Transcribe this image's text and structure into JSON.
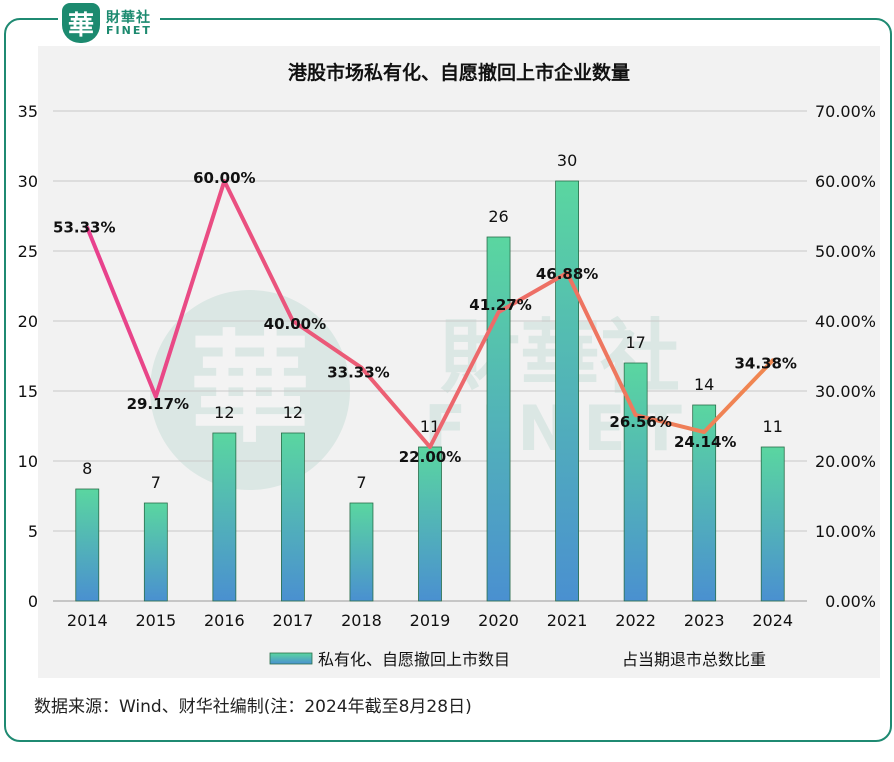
{
  "logo": {
    "badge": "華",
    "cn": "財華社",
    "en": "FINET"
  },
  "watermark": {
    "badge": "華",
    "cn": "財華社",
    "en": "FINET"
  },
  "title": "港股市场私有化、自愿撤回上市企业数量",
  "source": "数据来源：Wind、财华社编制(注：2024年截至8月28日)",
  "colors": {
    "frame": "#1f8a72",
    "bar_top": "#5ad6a0",
    "bar_bottom": "#4a90d0",
    "bar_stroke": "#2a6e4a",
    "line_start": "#e8408e",
    "line_end": "#f08850"
  },
  "chart_data": {
    "type": "bar+line",
    "title": "港股市场私有化、自愿撤回上市企业数量",
    "categories": [
      "2014",
      "2015",
      "2016",
      "2017",
      "2018",
      "2019",
      "2020",
      "2021",
      "2022",
      "2023",
      "2024"
    ],
    "series": [
      {
        "name": "私有化、自愿撤回上市数目",
        "type": "bar",
        "axis": "left",
        "values": [
          8,
          7,
          12,
          12,
          7,
          11,
          26,
          30,
          17,
          14,
          11
        ],
        "labels": [
          "8",
          "7",
          "12",
          "12",
          "7",
          "11",
          "26",
          "30",
          "17",
          "14",
          "11"
        ]
      },
      {
        "name": "占当期退市总数比重",
        "type": "line",
        "axis": "right",
        "values": [
          53.33,
          29.17,
          60.0,
          40.0,
          33.33,
          22.0,
          41.27,
          46.88,
          26.56,
          24.14,
          34.38
        ],
        "labels": [
          "53.33%",
          "29.17%",
          "60.00%",
          "40.00%",
          "33.33%",
          "22.00%",
          "41.27%",
          "46.88%",
          "26.56%",
          "24.14%",
          "34.38%"
        ]
      }
    ],
    "y_left": {
      "min": 0,
      "max": 35,
      "ticks": [
        "0",
        "5",
        "10",
        "15",
        "20",
        "25",
        "30",
        "35"
      ]
    },
    "y_right": {
      "min": 0,
      "max": 70,
      "ticks": [
        "0.00%",
        "10.00%",
        "20.00%",
        "30.00%",
        "40.00%",
        "50.00%",
        "60.00%",
        "70.00%"
      ]
    },
    "grid": true,
    "legend": "bottom"
  }
}
